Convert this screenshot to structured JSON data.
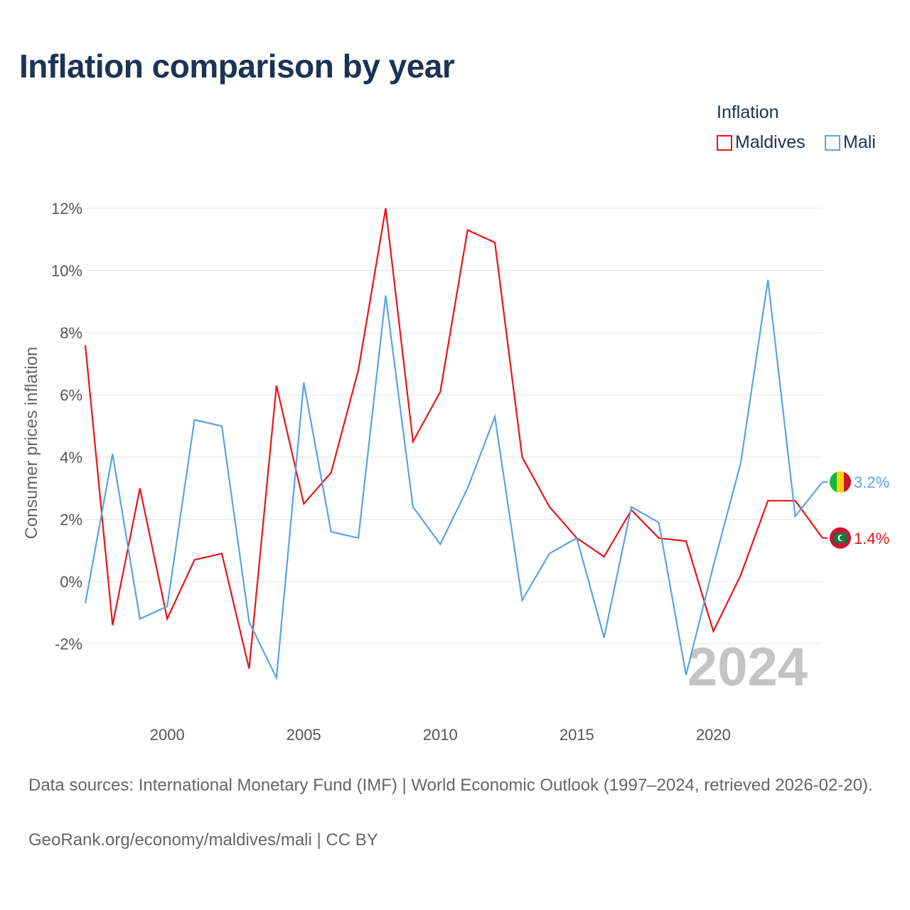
{
  "title": "Inflation comparison by year",
  "legend": {
    "title": "Inflation",
    "items": [
      {
        "label": "Maldives",
        "color": "#e8141a"
      },
      {
        "label": "Mali",
        "color": "#5ba3e3"
      }
    ]
  },
  "chart_data": {
    "type": "line",
    "title": "Inflation comparison by year",
    "ylabel": "Consumer prices inflation",
    "xlabel": "",
    "x": [
      1997,
      1998,
      1999,
      2000,
      2001,
      2002,
      2003,
      2004,
      2005,
      2006,
      2007,
      2008,
      2009,
      2010,
      2011,
      2012,
      2013,
      2014,
      2015,
      2016,
      2017,
      2018,
      2019,
      2020,
      2021,
      2022,
      2023,
      2024
    ],
    "xlim": [
      1997,
      2024
    ],
    "ylim": [
      -4,
      12.5
    ],
    "x_ticks": [
      2000,
      2005,
      2010,
      2015,
      2020
    ],
    "y_ticks": [
      -2,
      0,
      2,
      4,
      6,
      8,
      10,
      12
    ],
    "y_tick_labels": [
      "-2%",
      "0%",
      "2%",
      "4%",
      "6%",
      "8%",
      "10%",
      "12%"
    ],
    "grid": true,
    "year_watermark": "2024",
    "series": [
      {
        "name": "Maldives",
        "color": "#e8141a",
        "end_label": "1.4%",
        "values": [
          7.6,
          -1.4,
          3.0,
          -1.2,
          0.7,
          0.9,
          -2.8,
          6.3,
          2.5,
          3.5,
          6.8,
          12.0,
          4.5,
          6.1,
          11.3,
          10.9,
          4.0,
          2.4,
          1.4,
          0.8,
          2.3,
          1.4,
          1.3,
          -1.6,
          0.2,
          2.6,
          2.6,
          1.4
        ]
      },
      {
        "name": "Mali",
        "color": "#5ba3e3",
        "end_label": "3.2%",
        "values": [
          -0.7,
          4.1,
          -1.2,
          -0.8,
          5.2,
          5.0,
          -1.3,
          -3.1,
          6.4,
          1.6,
          1.4,
          9.2,
          2.4,
          1.2,
          3.0,
          5.3,
          -0.6,
          0.9,
          1.4,
          -1.8,
          2.4,
          1.9,
          -3.0,
          0.5,
          3.8,
          9.7,
          2.1,
          3.2
        ]
      }
    ]
  },
  "footer": {
    "sources": "Data sources: International Monetary Fund (IMF) | World Economic Outlook (1997–2024, retrieved 2026-02-20).",
    "credit": "GeoRank.org/economy/maldives/mali | CC BY"
  }
}
